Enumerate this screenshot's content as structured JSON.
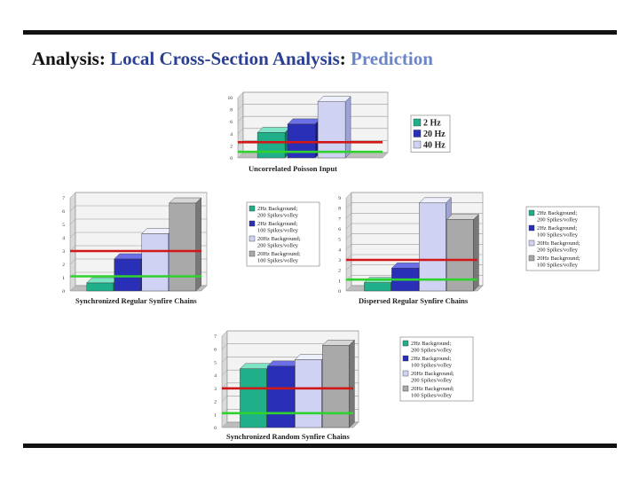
{
  "slide": {
    "title": {
      "part1": "Analysis",
      "sep1": ": ",
      "part2": "Local Cross-Section Analysis",
      "sep2": ": ",
      "part3": "Prediction"
    }
  },
  "colors": {
    "teal": "#1fb08a",
    "blue": "#2a2fb8",
    "lavender": "#cfd2f2",
    "gray": "#a9a9a9",
    "red_line": "#d01818",
    "green_line": "#2fd12f"
  },
  "chart_data": [
    {
      "id": "uncorrelated",
      "type": "bar",
      "title": "Uncorrelated Poisson Input",
      "ylim": [
        0,
        10
      ],
      "yticks": [
        "0",
        "2",
        "4",
        "6",
        "8",
        "10"
      ],
      "series": [
        {
          "name": "2 Hz",
          "value": 4.2
        },
        {
          "name": "20 Hz",
          "value": 5.6
        },
        {
          "name": "40 Hz",
          "value": 9.3
        }
      ],
      "lines": [
        2.6,
        1.0
      ],
      "legend": "right"
    },
    {
      "id": "sync-regular",
      "type": "bar",
      "title": "Synchronized Regular Synfire Chains",
      "ylim": [
        0,
        7
      ],
      "yticks": [
        "0",
        "1",
        "2",
        "3",
        "4",
        "5",
        "6",
        "7"
      ],
      "series": [
        {
          "name": "2Hz Background; 200 Spikes/volley",
          "value": 0.6
        },
        {
          "name": "2Hz Background; 100 Spikes/volley",
          "value": 2.4
        },
        {
          "name": "20Hz Background; 200 Spikes/volley",
          "value": 4.3
        },
        {
          "name": "20Hz Background; 100 Spikes/volley",
          "value": 6.6
        }
      ],
      "lines": [
        3.0,
        1.1
      ],
      "legend": "right"
    },
    {
      "id": "dispersed-regular",
      "type": "bar",
      "title": "Dispersed Regular Synfire Chains",
      "ylim": [
        0,
        9
      ],
      "yticks": [
        "0",
        "1",
        "2",
        "3",
        "4",
        "5",
        "6",
        "7",
        "8",
        "9"
      ],
      "series": [
        {
          "name": "2Hz Background; 200 Spikes/volley",
          "value": 0.8
        },
        {
          "name": "2Hz Background; 100 Spikes/volley",
          "value": 2.2
        },
        {
          "name": "20Hz Background; 200 Spikes/volley",
          "value": 8.5
        },
        {
          "name": "20Hz Background; 100 Spikes/volley",
          "value": 6.9
        }
      ],
      "lines": [
        3.0,
        1.1
      ],
      "legend": "right"
    },
    {
      "id": "sync-random",
      "type": "bar",
      "title": "Synchronized Random Synfire Chains",
      "ylim": [
        0,
        7
      ],
      "yticks": [
        "0",
        "1",
        "2",
        "3",
        "4",
        "5",
        "6",
        "7"
      ],
      "series": [
        {
          "name": "2Hz Background; 200 Spikes/volley",
          "value": 4.5
        },
        {
          "name": "2Hz Background; 100 Spikes/volley",
          "value": 4.7
        },
        {
          "name": "20Hz Background; 200 Spikes/volley",
          "value": 5.2
        },
        {
          "name": "20Hz Background; 100 Spikes/volley",
          "value": 6.3
        }
      ],
      "lines": [
        3.0,
        1.1
      ],
      "legend": "right"
    }
  ]
}
